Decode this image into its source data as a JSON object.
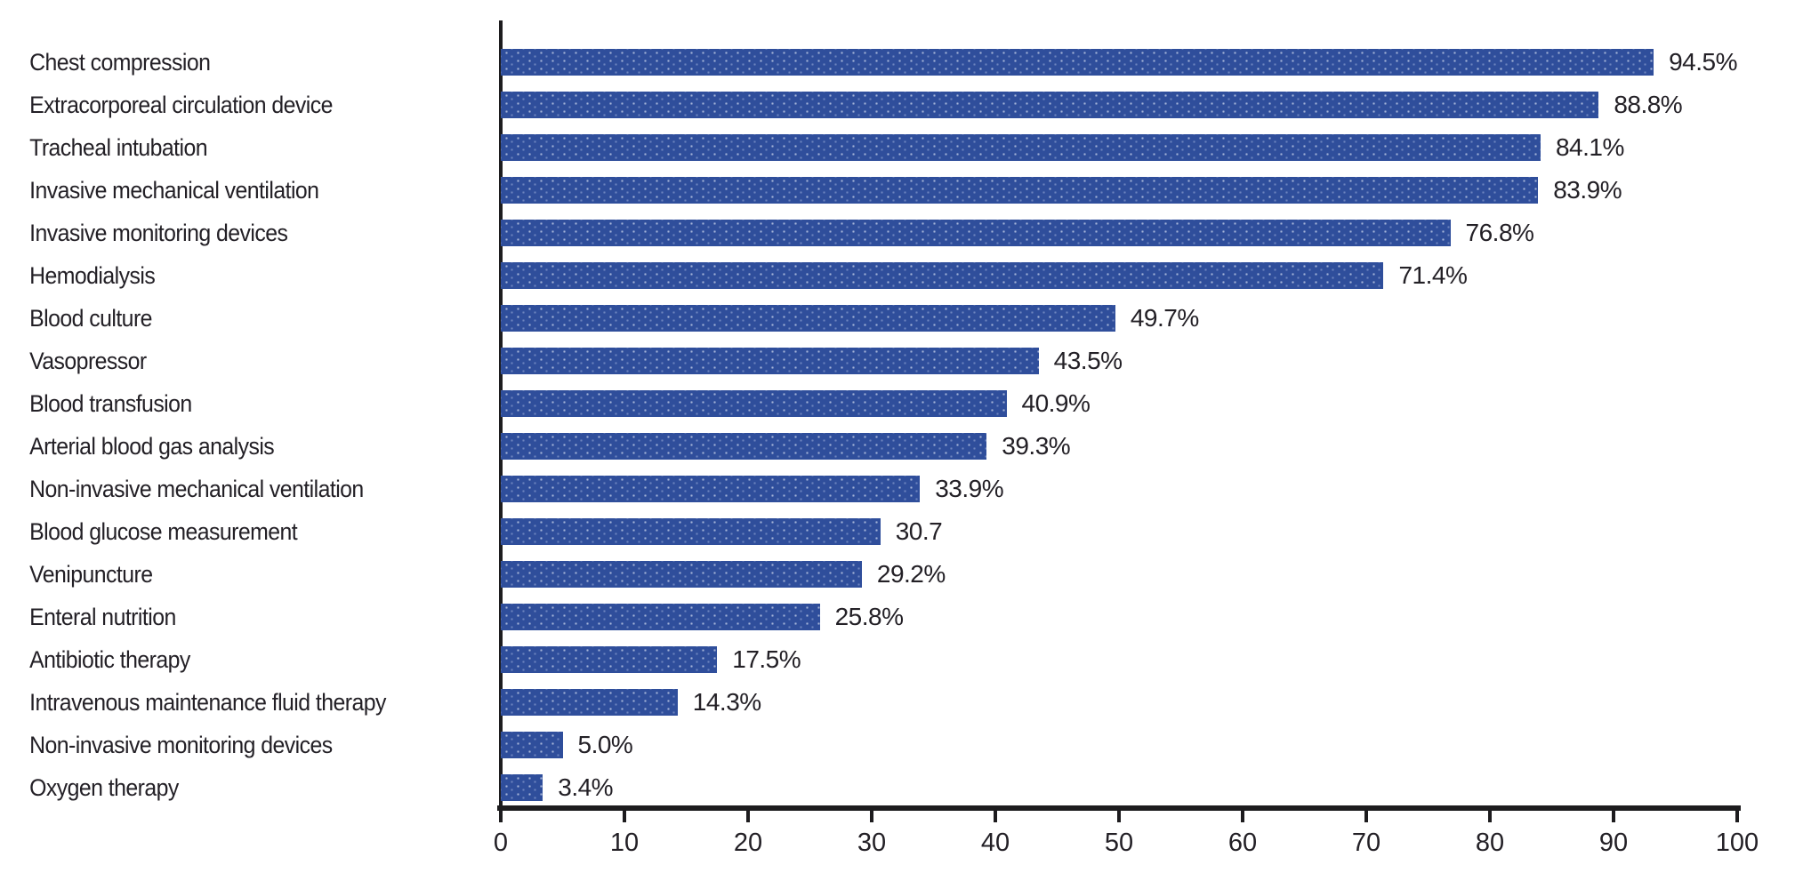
{
  "chart_data": {
    "type": "bar",
    "orientation": "horizontal",
    "title": "",
    "xlabel": "",
    "ylabel": "",
    "xlim": [
      0,
      100
    ],
    "x_ticks": [
      0,
      10,
      20,
      30,
      40,
      50,
      60,
      70,
      80,
      90,
      100
    ],
    "grid": false,
    "legend": false,
    "bar_color": "#2f4e9b",
    "bar_texture": "light-dot-pattern",
    "axis_color": "#1d1c1e",
    "text_color": "#232026",
    "categories": [
      "Chest compression",
      "Extracorporeal circulation device",
      "Tracheal intubation",
      "Invasive mechanical ventilation",
      "Invasive monitoring devices",
      "Hemodialysis",
      "Blood culture",
      "Vasopressor",
      "Blood transfusion",
      "Arterial blood gas analysis",
      "Non-invasive mechanical ventilation",
      "Blood glucose measurement",
      "Venipuncture",
      "Enteral nutrition",
      "Antibiotic therapy",
      "Intravenous maintenance fluid therapy",
      "Non-invasive monitoring devices",
      "Oxygen therapy"
    ],
    "values": [
      94.5,
      88.8,
      84.1,
      83.9,
      76.8,
      71.4,
      49.7,
      43.5,
      40.9,
      39.3,
      33.9,
      30.7,
      29.2,
      25.8,
      17.5,
      14.3,
      5.0,
      3.4
    ],
    "value_labels": [
      "94.5%",
      "88.8%",
      "84.1%",
      "83.9%",
      "76.8%",
      "71.4%",
      "49.7%",
      "43.5%",
      "40.9%",
      "39.3%",
      "33.9%",
      "30.7",
      "29.2%",
      "25.8%",
      "17.5%",
      "14.3%",
      "5.0%",
      "3.4%"
    ]
  }
}
